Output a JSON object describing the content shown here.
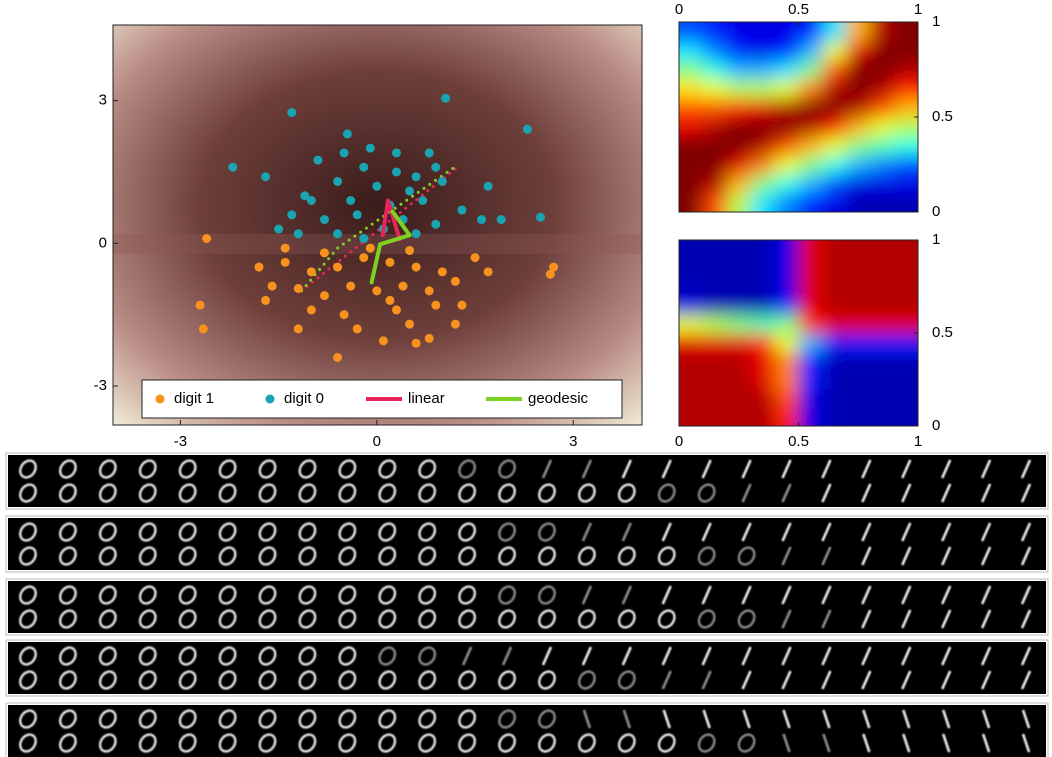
{
  "chart_data": [
    {
      "type": "scatter",
      "xlim": [
        -4.03,
        4.05
      ],
      "ylim": [
        -3.82,
        4.59
      ],
      "xticks": [
        -3,
        0,
        3
      ],
      "yticks": [
        -3,
        0,
        3
      ],
      "series": [
        {
          "name": "digit 1",
          "color": "#f7921e",
          "mode": "markers",
          "x": [
            -2.6,
            -2.7,
            -2.65,
            -0.6,
            0.1,
            0.6,
            1.2,
            1.3,
            2.7,
            2.65,
            -1.8,
            -1.4,
            -1.0,
            -0.6,
            -0.2,
            0.2,
            0.6,
            1.0,
            1.5,
            -1.6,
            -1.2,
            -0.8,
            -0.4,
            0.0,
            0.4,
            0.8,
            1.2,
            -1.0,
            -0.5,
            0.3,
            0.9,
            -0.3,
            0.5,
            -1.4,
            -0.8,
            -0.1,
            0.5,
            1.7,
            -1.7,
            0.8,
            -1.2,
            0.2
          ],
          "y": [
            0.1,
            -1.3,
            -1.8,
            -2.4,
            -2.05,
            -2.1,
            -1.7,
            -1.3,
            -0.5,
            -0.65,
            -0.5,
            -0.4,
            -0.6,
            -0.5,
            -0.3,
            -0.4,
            -0.5,
            -0.6,
            -0.3,
            -0.9,
            -0.95,
            -1.1,
            -0.9,
            -1.0,
            -0.9,
            -1.0,
            -0.8,
            -1.4,
            -1.5,
            -1.4,
            -1.3,
            -1.8,
            -1.7,
            -0.1,
            -0.2,
            -0.1,
            -0.15,
            -0.6,
            -1.2,
            -2.0,
            -1.8,
            -1.2
          ]
        },
        {
          "name": "digit 0",
          "color": "#1aa3b0",
          "mode": "markers",
          "x": [
            -2.2,
            -1.3,
            1.05,
            2.3,
            2.5,
            -1.7,
            -0.45,
            0.8,
            -0.9,
            -0.2,
            0.3,
            -0.6,
            0.0,
            0.5,
            1.0,
            -1.1,
            -0.4,
            0.2,
            0.7,
            1.3,
            -1.3,
            -0.8,
            -0.3,
            0.4,
            0.9,
            1.6,
            -1.5,
            -0.6,
            0.1,
            0.6,
            -0.2,
            -1.0,
            0.9,
            -0.5,
            1.7,
            -0.1,
            0.3,
            1.9,
            -1.2,
            0.6
          ],
          "y": [
            1.6,
            2.75,
            3.05,
            2.4,
            0.55,
            1.4,
            2.3,
            1.9,
            1.75,
            1.6,
            1.5,
            1.3,
            1.2,
            1.1,
            1.3,
            1.0,
            0.9,
            0.8,
            0.9,
            0.7,
            0.6,
            0.5,
            0.6,
            0.5,
            0.4,
            0.5,
            0.3,
            0.2,
            0.3,
            0.2,
            0.1,
            0.9,
            1.6,
            1.9,
            1.2,
            2.0,
            1.9,
            0.5,
            0.2,
            1.4
          ]
        },
        {
          "name": "linear",
          "color": "#e8245a",
          "mode": "lines",
          "x": [
            0.09,
            0.17,
            0.35
          ],
          "y": [
            0.17,
            0.9,
            0.08
          ],
          "dotted_x": [
            -1.15,
            1.24
          ],
          "dotted_y": [
            -1.0,
            1.61
          ]
        },
        {
          "name": "geodesic",
          "color": "#7ed321",
          "mode": "lines",
          "x": [
            -0.08,
            0.05,
            0.5,
            0.24
          ],
          "y": [
            -0.82,
            -0.02,
            0.17,
            0.67
          ],
          "dotted_x": [
            -1.15,
            -0.6,
            1.24
          ],
          "dotted_y": [
            -1.0,
            -0.1,
            1.65
          ]
        }
      ]
    },
    {
      "type": "heatmap",
      "xlim": [
        0,
        1
      ],
      "ylim": [
        0,
        1
      ],
      "xticks": [
        0,
        0.5,
        1
      ],
      "yticks": [
        0,
        0.5,
        1
      ],
      "x_axis": "top",
      "values": [
        [
          1,
          0.8,
          0.55,
          0.35,
          0.25,
          0.15,
          0.1,
          0.05,
          0.05,
          0.05
        ],
        [
          1,
          0.95,
          0.7,
          0.5,
          0.4,
          0.3,
          0.2,
          0.1,
          0.1,
          0.1
        ],
        [
          1,
          1,
          0.9,
          0.75,
          0.6,
          0.5,
          0.4,
          0.3,
          0.25,
          0.2
        ],
        [
          1,
          1,
          1,
          0.95,
          0.8,
          0.7,
          0.6,
          0.5,
          0.45,
          0.4
        ],
        [
          0.9,
          0.95,
          1,
          1,
          1,
          0.95,
          0.85,
          0.7,
          0.6,
          0.55
        ],
        [
          0.8,
          0.8,
          0.85,
          0.9,
          0.95,
          1,
          1,
          0.95,
          0.8,
          0.7
        ],
        [
          0.65,
          0.6,
          0.55,
          0.55,
          0.6,
          0.75,
          0.95,
          1,
          0.95,
          0.85
        ],
        [
          0.5,
          0.4,
          0.3,
          0.3,
          0.35,
          0.5,
          0.8,
          1,
          1,
          0.95
        ],
        [
          0.35,
          0.25,
          0.15,
          0.1,
          0.15,
          0.3,
          0.6,
          0.9,
          1,
          1
        ],
        [
          0.2,
          0.15,
          0.1,
          0.1,
          0.1,
          0.15,
          0.35,
          0.7,
          0.95,
          1
        ]
      ]
    },
    {
      "type": "heatmap",
      "xlim": [
        0,
        1
      ],
      "ylim": [
        0,
        1
      ],
      "xticks": [
        0,
        0.5,
        1
      ],
      "yticks": [
        0,
        0.5,
        1
      ],
      "x_axis": "bottom",
      "values": [
        [
          0.95,
          0.95,
          0.95,
          0.95,
          0.85,
          0.1,
          0.05,
          0.05,
          0.05,
          0.05
        ],
        [
          0.95,
          0.95,
          0.95,
          0.95,
          0.8,
          0.1,
          0.05,
          0.05,
          0.05,
          0.05
        ],
        [
          0.95,
          0.95,
          0.95,
          0.9,
          0.75,
          0.15,
          0.05,
          0.05,
          0.05,
          0.05
        ],
        [
          0.95,
          0.95,
          0.95,
          0.9,
          0.75,
          0.15,
          0.05,
          0.05,
          0.05,
          0.05
        ],
        [
          0.9,
          0.9,
          0.9,
          0.85,
          0.6,
          0.3,
          0.15,
          0.15,
          0.15,
          0.15
        ],
        [
          0.6,
          0.55,
          0.5,
          0.45,
          0.5,
          0.85,
          0.9,
          0.9,
          0.9,
          0.9
        ],
        [
          0.1,
          0.05,
          0.05,
          0.05,
          0.15,
          0.9,
          0.95,
          0.95,
          0.95,
          0.95
        ],
        [
          0.05,
          0.05,
          0.05,
          0.05,
          0.1,
          0.9,
          0.95,
          0.95,
          0.95,
          0.95
        ],
        [
          0.05,
          0.05,
          0.05,
          0.05,
          0.1,
          0.9,
          0.95,
          0.95,
          0.95,
          0.95
        ],
        [
          0.05,
          0.05,
          0.05,
          0.05,
          0.1,
          0.9,
          0.95,
          0.95,
          0.95,
          0.95
        ]
      ]
    }
  ]
}
